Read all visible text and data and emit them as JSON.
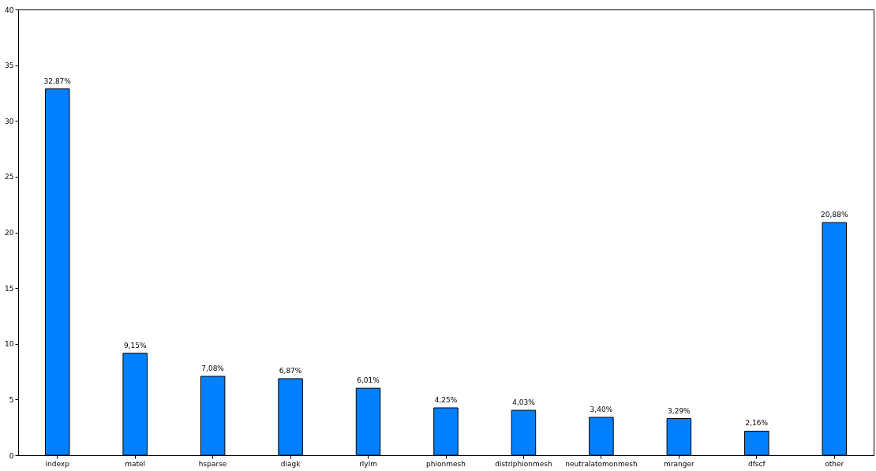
{
  "chart_data": {
    "type": "bar",
    "categories": [
      "indexp",
      "matel",
      "hsparse",
      "diagk",
      "rlylm",
      "phionmesh",
      "distriphionmesh",
      "neutralatomonmesh",
      "mranger",
      "dfscf",
      "other"
    ],
    "values": [
      32.87,
      9.15,
      7.08,
      6.87,
      6.01,
      4.25,
      4.03,
      3.4,
      3.29,
      2.16,
      20.88
    ],
    "value_labels": [
      "32,87%",
      "9,15%",
      "7,08%",
      "6,87%",
      "6,01%",
      "4,25%",
      "4,03%",
      "3,40%",
      "3,29%",
      "2,16%",
      "20,88%"
    ],
    "color": "#0080ff",
    "ylim": [
      0,
      40
    ],
    "yticks": [
      0,
      5,
      10,
      15,
      20,
      25,
      30,
      35,
      40
    ],
    "grid": false
  }
}
